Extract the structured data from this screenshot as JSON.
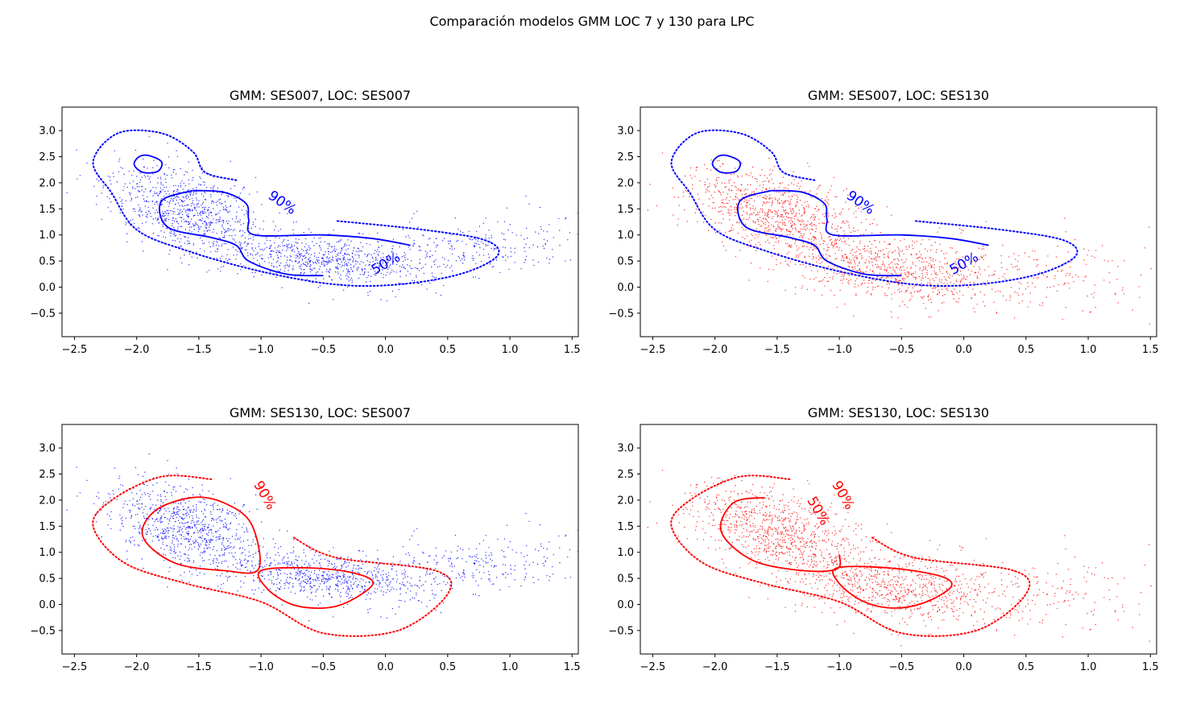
{
  "figure": {
    "suptitle": "Comparación modelos GMM LOC 7 y 130 para LPC"
  },
  "chart_data": [
    {
      "type": "scatter",
      "title": "GMM: SES007, LOC: SES007",
      "xlabel": "",
      "ylabel": "",
      "xlim": [
        -2.6,
        1.55
      ],
      "ylim": [
        -0.95,
        3.45
      ],
      "xticks": [
        "−2.5",
        "−2.0",
        "−1.5",
        "−1.0",
        "−0.5",
        "0.0",
        "0.5",
        "1.0",
        "1.5"
      ],
      "yticks": [
        "−0.5",
        "0.0",
        "0.5",
        "1.0",
        "1.5",
        "2.0",
        "2.5",
        "3.0"
      ],
      "scatter_color": "#0000ff",
      "scatter_source": "SES007",
      "contour_color": "#0000ff",
      "contours": [
        {
          "level": "50%",
          "style": "solid",
          "points": [
            [
              -1.55,
              1.85
            ],
            [
              -1.8,
              1.65
            ],
            [
              -1.75,
              1.15
            ],
            [
              -1.4,
              0.95
            ],
            [
              -1.2,
              0.8
            ],
            [
              -1.1,
              0.5
            ],
            [
              -0.8,
              0.25
            ],
            [
              -0.5,
              0.22
            ]
          ]
        },
        {
          "level": "50%",
          "style": "solid",
          "points": [
            [
              -1.55,
              1.85
            ],
            [
              -1.3,
              1.82
            ],
            [
              -1.12,
              1.6
            ],
            [
              -1.1,
              1.3
            ],
            [
              -1.05,
              1.0
            ],
            [
              -0.5,
              1.0
            ],
            [
              -0.1,
              0.93
            ],
            [
              0.2,
              0.8
            ]
          ]
        },
        {
          "level": "50%",
          "style": "solid-closed",
          "points": [
            [
              -1.9,
              2.52
            ],
            [
              -1.8,
              2.4
            ],
            [
              -1.83,
              2.22
            ],
            [
              -1.95,
              2.2
            ],
            [
              -2.02,
              2.35
            ],
            [
              -1.98,
              2.5
            ]
          ]
        },
        {
          "level": "90%",
          "style": "dotted",
          "points": [
            [
              -1.2,
              2.05
            ],
            [
              -1.45,
              2.2
            ],
            [
              -1.55,
              2.6
            ],
            [
              -1.8,
              2.95
            ],
            [
              -2.15,
              2.95
            ],
            [
              -2.35,
              2.4
            ],
            [
              -2.2,
              1.8
            ],
            [
              -2.0,
              1.1
            ],
            [
              -1.6,
              0.7
            ],
            [
              -1.0,
              0.3
            ],
            [
              -0.4,
              0.05
            ],
            [
              0.1,
              0.05
            ],
            [
              0.6,
              0.25
            ],
            [
              0.9,
              0.6
            ],
            [
              0.8,
              0.9
            ],
            [
              0.3,
              1.1
            ],
            [
              -0.4,
              1.27
            ]
          ]
        }
      ],
      "contour_labels": [
        {
          "text": "90%",
          "x": -0.85,
          "y": 1.55,
          "angle": 35
        },
        {
          "text": "50%",
          "x": 0.02,
          "y": 0.38,
          "angle": -30
        }
      ]
    },
    {
      "type": "scatter",
      "title": "GMM: SES007, LOC: SES130",
      "xlabel": "",
      "ylabel": "",
      "xlim": [
        -2.6,
        1.55
      ],
      "ylim": [
        -0.95,
        3.45
      ],
      "xticks": [
        "−2.5",
        "−2.0",
        "−1.5",
        "−1.0",
        "−0.5",
        "0.0",
        "0.5",
        "1.0",
        "1.5"
      ],
      "yticks": [
        "−0.5",
        "0.0",
        "0.5",
        "1.0",
        "1.5",
        "2.0",
        "2.5",
        "3.0"
      ],
      "scatter_color": "#ff0000",
      "scatter_source": "SES130",
      "contour_color": "#0000ff",
      "contours": [
        {
          "level": "50%",
          "style": "solid",
          "points": [
            [
              -1.55,
              1.85
            ],
            [
              -1.8,
              1.65
            ],
            [
              -1.75,
              1.15
            ],
            [
              -1.4,
              0.95
            ],
            [
              -1.2,
              0.8
            ],
            [
              -1.1,
              0.5
            ],
            [
              -0.8,
              0.25
            ],
            [
              -0.5,
              0.22
            ]
          ]
        },
        {
          "level": "50%",
          "style": "solid",
          "points": [
            [
              -1.55,
              1.85
            ],
            [
              -1.3,
              1.82
            ],
            [
              -1.12,
              1.6
            ],
            [
              -1.1,
              1.3
            ],
            [
              -1.05,
              1.0
            ],
            [
              -0.5,
              1.0
            ],
            [
              -0.1,
              0.93
            ],
            [
              0.2,
              0.8
            ]
          ]
        },
        {
          "level": "50%",
          "style": "solid-closed",
          "points": [
            [
              -1.9,
              2.52
            ],
            [
              -1.8,
              2.4
            ],
            [
              -1.83,
              2.22
            ],
            [
              -1.95,
              2.2
            ],
            [
              -2.02,
              2.35
            ],
            [
              -1.98,
              2.5
            ]
          ]
        },
        {
          "level": "90%",
          "style": "dotted",
          "points": [
            [
              -1.2,
              2.05
            ],
            [
              -1.45,
              2.2
            ],
            [
              -1.55,
              2.6
            ],
            [
              -1.8,
              2.95
            ],
            [
              -2.15,
              2.95
            ],
            [
              -2.35,
              2.4
            ],
            [
              -2.2,
              1.8
            ],
            [
              -2.0,
              1.1
            ],
            [
              -1.6,
              0.7
            ],
            [
              -1.0,
              0.3
            ],
            [
              -0.4,
              0.05
            ],
            [
              0.1,
              0.05
            ],
            [
              0.6,
              0.25
            ],
            [
              0.9,
              0.6
            ],
            [
              0.8,
              0.9
            ],
            [
              0.3,
              1.1
            ],
            [
              -0.4,
              1.27
            ]
          ]
        }
      ],
      "contour_labels": [
        {
          "text": "90%",
          "x": -0.85,
          "y": 1.55,
          "angle": 35
        },
        {
          "text": "50%",
          "x": 0.02,
          "y": 0.38,
          "angle": -30
        }
      ]
    },
    {
      "type": "scatter",
      "title": "GMM: SES130, LOC: SES007",
      "xlabel": "",
      "ylabel": "",
      "xlim": [
        -2.6,
        1.55
      ],
      "ylim": [
        -0.95,
        3.45
      ],
      "xticks": [
        "−2.5",
        "−2.0",
        "−1.5",
        "−1.0",
        "−0.5",
        "0.0",
        "0.5",
        "1.0",
        "1.5"
      ],
      "yticks": [
        "−0.5",
        "0.0",
        "0.5",
        "1.0",
        "1.5",
        "2.0",
        "2.5",
        "3.0"
      ],
      "scatter_color": "#0000ff",
      "scatter_source": "SES007",
      "contour_color": "#ff0000",
      "contours": [
        {
          "level": "50%",
          "style": "solid-closed",
          "points": [
            [
              -1.55,
              2.05
            ],
            [
              -1.3,
              1.95
            ],
            [
              -1.08,
              1.55
            ],
            [
              -1.02,
              0.68
            ],
            [
              -1.3,
              0.65
            ],
            [
              -1.7,
              0.8
            ],
            [
              -1.95,
              1.3
            ],
            [
              -1.85,
              1.8
            ]
          ]
        },
        {
          "level": "50%",
          "style": "solid-closed",
          "points": [
            [
              -1.0,
              0.65
            ],
            [
              -0.6,
              0.7
            ],
            [
              -0.25,
              0.6
            ],
            [
              -0.1,
              0.4
            ],
            [
              -0.3,
              0.05
            ],
            [
              -0.5,
              -0.07
            ],
            [
              -0.75,
              0.0
            ],
            [
              -0.95,
              0.3
            ]
          ]
        },
        {
          "level": "90%",
          "style": "dotted",
          "points": [
            [
              -1.4,
              2.4
            ],
            [
              -1.8,
              2.45
            ],
            [
              -2.2,
              2.0
            ],
            [
              -2.35,
              1.5
            ],
            [
              -2.1,
              0.8
            ],
            [
              -1.6,
              0.4
            ],
            [
              -1.0,
              0.05
            ],
            [
              -0.5,
              -0.55
            ],
            [
              0.1,
              -0.5
            ],
            [
              0.5,
              0.2
            ],
            [
              0.4,
              0.65
            ],
            [
              -0.4,
              0.9
            ],
            [
              -0.75,
              1.3
            ]
          ]
        }
      ],
      "contour_labels": [
        {
          "text": "90%",
          "x": -1.0,
          "y": 2.05,
          "angle": 60
        }
      ]
    },
    {
      "type": "scatter",
      "title": "GMM: SES130, LOC: SES130",
      "xlabel": "",
      "ylabel": "",
      "xlim": [
        -2.6,
        1.55
      ],
      "ylim": [
        -0.95,
        3.45
      ],
      "xticks": [
        "−2.5",
        "−2.0",
        "−1.5",
        "−1.0",
        "−0.5",
        "0.0",
        "0.5",
        "1.0",
        "1.5"
      ],
      "yticks": [
        "−0.5",
        "0.0",
        "0.5",
        "1.0",
        "1.5",
        "2.0",
        "2.5",
        "3.0"
      ],
      "scatter_color": "#ff0000",
      "scatter_source": "SES130",
      "contour_color": "#ff0000",
      "contours": [
        {
          "level": "50%",
          "style": "solid",
          "points": [
            [
              -1.6,
              2.05
            ],
            [
              -1.85,
              1.95
            ],
            [
              -1.95,
              1.4
            ],
            [
              -1.7,
              0.85
            ],
            [
              -1.3,
              0.65
            ],
            [
              -1.02,
              0.68
            ],
            [
              -1.0,
              0.95
            ]
          ]
        },
        {
          "level": "50%",
          "style": "solid-closed",
          "points": [
            [
              -1.02,
              0.7
            ],
            [
              -0.6,
              0.7
            ],
            [
              -0.2,
              0.55
            ],
            [
              -0.1,
              0.35
            ],
            [
              -0.3,
              0.05
            ],
            [
              -0.55,
              -0.07
            ],
            [
              -0.8,
              0.05
            ],
            [
              -1.0,
              0.4
            ]
          ]
        },
        {
          "level": "90%",
          "style": "dotted",
          "points": [
            [
              -1.4,
              2.4
            ],
            [
              -1.8,
              2.45
            ],
            [
              -2.2,
              2.0
            ],
            [
              -2.35,
              1.5
            ],
            [
              -2.1,
              0.8
            ],
            [
              -1.6,
              0.4
            ],
            [
              -1.0,
              0.05
            ],
            [
              -0.5,
              -0.55
            ],
            [
              0.1,
              -0.5
            ],
            [
              0.5,
              0.2
            ],
            [
              0.4,
              0.65
            ],
            [
              -0.4,
              0.9
            ],
            [
              -0.75,
              1.3
            ]
          ]
        }
      ],
      "contour_labels": [
        {
          "text": "90%",
          "x": -1.0,
          "y": 2.05,
          "angle": 60
        },
        {
          "text": "50%",
          "x": -1.2,
          "y": 1.75,
          "angle": 60
        }
      ]
    }
  ]
}
